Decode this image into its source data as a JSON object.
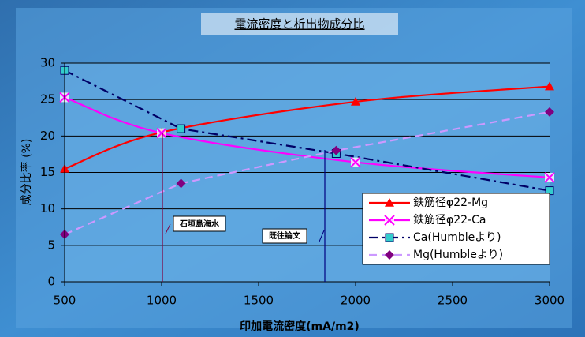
{
  "chart_data": {
    "type": "line",
    "title": "電流密度と析出物成分比",
    "xlabel": "印加電流密度(mA/m2)",
    "ylabel": "成分比率 (%)",
    "xlim": [
      500,
      3000
    ],
    "xticks": [
      500,
      1000,
      1500,
      2000,
      2500,
      3000
    ],
    "ylim": [
      0,
      30
    ],
    "yticks": [
      0,
      5,
      10,
      15,
      20,
      25,
      30
    ],
    "grid": true,
    "legend": "lower right",
    "series": [
      {
        "name": "鉄筋径φ22-Mg",
        "color": "#ff0000",
        "linestyle": "solid",
        "smooth": true,
        "marker": "triangle",
        "x": [
          500,
          1000,
          2000,
          3000
        ],
        "values": [
          15.5,
          20.5,
          24.7,
          26.8
        ]
      },
      {
        "name": "鉄筋径φ22-Ca",
        "color": "#ff00ff",
        "linestyle": "solid",
        "smooth": true,
        "marker": "x",
        "x": [
          500,
          1000,
          2000,
          3000
        ],
        "values": [
          25.3,
          20.4,
          16.4,
          14.3
        ]
      },
      {
        "name": "Ca(Humbleより)",
        "color": "#000066",
        "linestyle": "dashdot",
        "smooth": false,
        "marker": "square",
        "x": [
          500,
          1100,
          1900,
          3000
        ],
        "values": [
          29,
          21,
          17.6,
          12.5
        ]
      },
      {
        "name": "Mg(Humbleより)",
        "color": "#cc99ff",
        "linestyle": "dashed",
        "smooth": false,
        "marker": "diamond",
        "x": [
          500,
          1100,
          1900,
          3000
        ],
        "values": [
          6.5,
          13.5,
          18,
          23.3
        ]
      }
    ],
    "annotations": [
      "石垣島海水",
      "既往論文"
    ]
  }
}
